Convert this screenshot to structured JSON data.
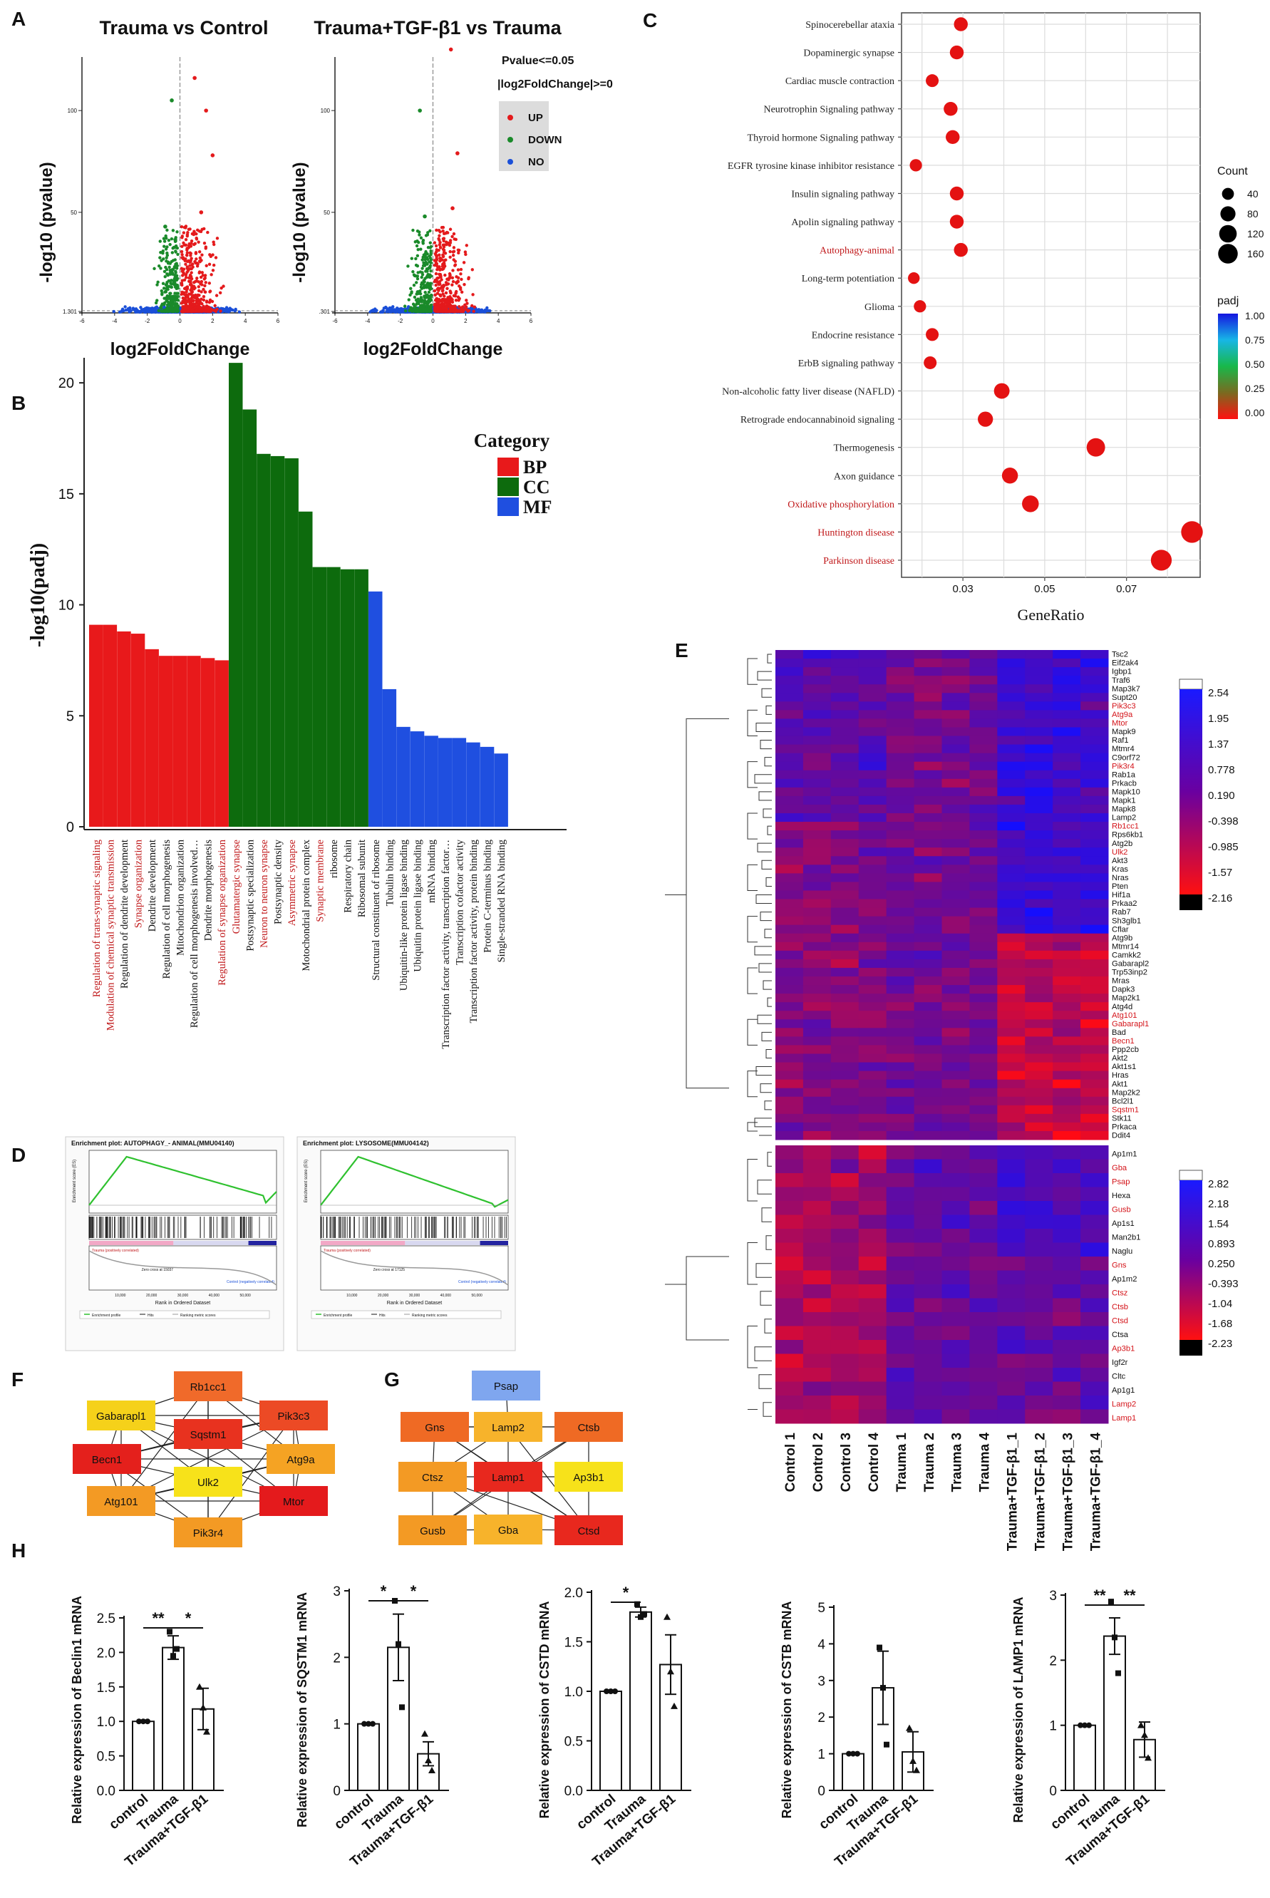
{
  "chart_data": [
    {
      "panel": "A",
      "type": "scatter",
      "subtype": "volcano",
      "plots": [
        {
          "title": "Trauma vs Control",
          "xlabel": "log2FoldChange",
          "ylabel": "-log10 (pvalue)",
          "yticks": [
            "1.301",
            "50",
            "100"
          ],
          "xticks": [
            "-6",
            "-4",
            "-2",
            "0",
            "2",
            "4",
            "6"
          ]
        },
        {
          "title": "Trauma+TGF-β1 vs Trauma",
          "xlabel": "log2FoldChange",
          "ylabel": "-log10 (pvalue)",
          "yticks": [
            ".301",
            "50",
            "100"
          ],
          "xticks": [
            "-6",
            "-4",
            "-2",
            "0",
            "2",
            "4",
            "6"
          ]
        }
      ],
      "thresholds": [
        "Pvalue<=0.05",
        "|log2FoldChange|>=0"
      ],
      "legend": [
        {
          "label": "UP",
          "color": "#e41a1c"
        },
        {
          "label": "DOWN",
          "color": "#1a8a2a"
        },
        {
          "label": "NO",
          "color": "#1a4fd8"
        }
      ]
    },
    {
      "panel": "B",
      "type": "bar",
      "ylabel": "-log10(padj)",
      "ylim": [
        0,
        21
      ],
      "yticks": [
        0,
        5,
        10,
        15,
        20
      ],
      "legend_title": "Category",
      "categories_legend": [
        {
          "label": "BP",
          "color": "#e8191b"
        },
        {
          "label": "CC",
          "color": "#0d6b0d"
        },
        {
          "label": "MF",
          "color": "#1f4fe0"
        }
      ],
      "bars": [
        {
          "label": "Regulation of trans-synaptic signaling",
          "value": 9.1,
          "cat": "BP",
          "highlight": true
        },
        {
          "label": "Modulation of chemical synaptic transmission",
          "value": 9.1,
          "cat": "BP",
          "highlight": true
        },
        {
          "label": "Regulation of dendrite development",
          "value": 8.8,
          "cat": "BP",
          "highlight": false
        },
        {
          "label": "Synapse organization",
          "value": 8.7,
          "cat": "BP",
          "highlight": true
        },
        {
          "label": "Dendrite development",
          "value": 8.0,
          "cat": "BP",
          "highlight": false
        },
        {
          "label": "Regulation of cell morphogenesis",
          "value": 7.7,
          "cat": "BP",
          "highlight": false
        },
        {
          "label": "Mitochondrion organization",
          "value": 7.7,
          "cat": "BP",
          "highlight": false
        },
        {
          "label": "Regulation of cell morphogenesis involved…",
          "value": 7.7,
          "cat": "BP",
          "highlight": false
        },
        {
          "label": "Dendrite morphogenesis",
          "value": 7.6,
          "cat": "BP",
          "highlight": false
        },
        {
          "label": "Regulation of synapse organization",
          "value": 7.5,
          "cat": "BP",
          "highlight": true
        },
        {
          "label": "Glutamatergic synapse",
          "value": 20.9,
          "cat": "CC",
          "highlight": true
        },
        {
          "label": "Postsynaptic specialization",
          "value": 18.8,
          "cat": "CC",
          "highlight": false
        },
        {
          "label": "Neuron to neuron synapse",
          "value": 16.8,
          "cat": "CC",
          "highlight": true
        },
        {
          "label": "Postsynaptic density",
          "value": 16.7,
          "cat": "CC",
          "highlight": false
        },
        {
          "label": "Asymmetric synapse",
          "value": 16.6,
          "cat": "CC",
          "highlight": true
        },
        {
          "label": "Motochondrial protein complex",
          "value": 14.2,
          "cat": "CC",
          "highlight": false
        },
        {
          "label": "Synaptic membrane",
          "value": 11.7,
          "cat": "CC",
          "highlight": true
        },
        {
          "label": "ribosome",
          "value": 11.7,
          "cat": "CC",
          "highlight": false
        },
        {
          "label": "Respiratory chain",
          "value": 11.6,
          "cat": "CC",
          "highlight": false
        },
        {
          "label": "Ribosomal subunit",
          "value": 11.6,
          "cat": "CC",
          "highlight": false
        },
        {
          "label": "Structural constituent of ribosome",
          "value": 10.6,
          "cat": "MF",
          "highlight": false
        },
        {
          "label": "Tubulin binding",
          "value": 6.2,
          "cat": "MF",
          "highlight": false
        },
        {
          "label": "Ubiquitin-like protein ligase binding",
          "value": 4.5,
          "cat": "MF",
          "highlight": false
        },
        {
          "label": "Ubiquitin protein ligase binding",
          "value": 4.3,
          "cat": "MF",
          "highlight": false
        },
        {
          "label": "mRNA binding",
          "value": 4.1,
          "cat": "MF",
          "highlight": false
        },
        {
          "label": "Transcription factor activity, transcription factor…",
          "value": 4.0,
          "cat": "MF",
          "highlight": false
        },
        {
          "label": "Transcription cofactor activity",
          "value": 4.0,
          "cat": "MF",
          "highlight": false
        },
        {
          "label": "Transcription factor activity, protein binding",
          "value": 3.8,
          "cat": "MF",
          "highlight": false
        },
        {
          "label": "Protein C-terminus binding",
          "value": 3.6,
          "cat": "MF",
          "highlight": false
        },
        {
          "label": "Single-stranded RNA binding",
          "value": 3.3,
          "cat": "MF",
          "highlight": false
        }
      ]
    },
    {
      "panel": "C",
      "type": "scatter",
      "subtype": "dot",
      "xlabel": "GeneRatio",
      "xlim": [
        0.015,
        0.088
      ],
      "xticks": [
        0.03,
        0.05,
        0.07
      ],
      "size_legend_title": "Count",
      "size_legend": [
        40,
        80,
        120,
        160
      ],
      "color_legend_title": "padj",
      "color_ticks": [
        "1.00",
        "0.75",
        "0.50",
        "0.25",
        "0.00"
      ],
      "terms": [
        {
          "label": "Spinocerebellar ataxia",
          "x": 0.0295,
          "count": 50,
          "highlight": false
        },
        {
          "label": "Dopaminergic synapse",
          "x": 0.0285,
          "count": 50,
          "highlight": false
        },
        {
          "label": "Cardiac muscle contraction",
          "x": 0.0225,
          "count": 40,
          "highlight": false
        },
        {
          "label": "Neurotrophin Signaling pathway",
          "x": 0.027,
          "count": 50,
          "highlight": false
        },
        {
          "label": "Thyroid hormone Signaling pathway",
          "x": 0.0275,
          "count": 50,
          "highlight": false
        },
        {
          "label": "EGFR tyrosine kinase inhibitor resistance",
          "x": 0.0185,
          "count": 35,
          "highlight": false
        },
        {
          "label": "Insulin signaling pathway",
          "x": 0.0285,
          "count": 50,
          "highlight": false
        },
        {
          "label": "Apolin signaling pathway",
          "x": 0.0285,
          "count": 50,
          "highlight": false
        },
        {
          "label": "Autophagy-animal",
          "x": 0.0295,
          "count": 50,
          "highlight": true
        },
        {
          "label": "Long-term potentiation",
          "x": 0.018,
          "count": 30,
          "highlight": false
        },
        {
          "label": "Glioma",
          "x": 0.0195,
          "count": 35,
          "highlight": false
        },
        {
          "label": "Endocrine resistance",
          "x": 0.0225,
          "count": 40,
          "highlight": false
        },
        {
          "label": "ErbB signaling pathway",
          "x": 0.022,
          "count": 40,
          "highlight": false
        },
        {
          "label": "Non-alcoholic fatty liver disease (NAFLD)",
          "x": 0.0395,
          "count": 70,
          "highlight": false
        },
        {
          "label": "Retrograde endocannabinoid signaling",
          "x": 0.0355,
          "count": 65,
          "highlight": false
        },
        {
          "label": "Thermogenesis",
          "x": 0.0625,
          "count": 110,
          "highlight": false
        },
        {
          "label": "Axon guidance",
          "x": 0.0415,
          "count": 75,
          "highlight": false
        },
        {
          "label": "Oxidative phosphorylation",
          "x": 0.0465,
          "count": 85,
          "highlight": true
        },
        {
          "label": "Huntington disease",
          "x": 0.086,
          "count": 165,
          "highlight": true
        },
        {
          "label": "Parkinson disease",
          "x": 0.0785,
          "count": 150,
          "highlight": true
        }
      ]
    },
    {
      "panel": "D",
      "type": "line",
      "subtype": "gsea",
      "plots": [
        {
          "title": "Enrichment plot: AUTOPHAGY_- ANIMAL(MMU04140)",
          "xlabel": "Rank in Ordered Dataset",
          "ylabel": "Enrichment score (ES)",
          "low_label": "Trauma (positively correlated)",
          "high_label": "Control (negatively correlated)",
          "zero_cross": "Zero cross at 15037",
          "xticks": [
            "10,000",
            "20,000",
            "30,000",
            "40,000",
            "50,000"
          ]
        },
        {
          "title": "Enrichment plot: LYSOSOME(MMU04142)",
          "xlabel": "Rank in Ordered Dataset",
          "ylabel": "Enrichment score (ES)",
          "low_label": "Trauma (positively correlated)",
          "high_label": "Control (negatively correlated)",
          "zero_cross": "Zero cross at 17125",
          "xticks": [
            "10,000",
            "20,000",
            "30,000",
            "40,000",
            "50,000"
          ]
        }
      ],
      "legend": [
        "Enrichment profile",
        "Hits",
        "Ranking metric scores"
      ]
    },
    {
      "panel": "E",
      "type": "heatmap",
      "columns": [
        "Control 1",
        "Control 2",
        "Control 3",
        "Control 4",
        "Trauma 1",
        "Trauma 2",
        "Trauma 3",
        "Trauma 4",
        "Trauma+TGF-β1_1",
        "Trauma+TGF-β1_2",
        "Trauma+TGF-β1_3",
        "Trauma+TGF-β1_4"
      ],
      "top_rows": [
        "Tsc2",
        "Eif2ak4",
        "Igbp1",
        "Traf6",
        "Map3k7",
        "Supt20",
        "Pik3c3",
        "Atg9a",
        "Mtor",
        "Mapk9",
        "Raf1",
        "Mtmr4",
        "C9orf72",
        "Pik3r4",
        "Rab1a",
        "Prkacb",
        "Mapk10",
        "Mapk1",
        "Mapk8",
        "Lamp2",
        "Rb1cc1",
        "Rps6kb1",
        "Atg2b",
        "Ulk2",
        "Akt3",
        "Kras",
        "Nras",
        "Pten",
        "Hif1a",
        "Prkaa2",
        "Rab7",
        "Sh3glb1",
        "Cflar",
        "Atg9b",
        "Mtmr14",
        "Camkk2",
        "Gabarapl2",
        "Trp53inp2",
        "Mras",
        "Dapk3",
        "Map2k1",
        "Atg4d",
        "Atg101",
        "Gabarapl1",
        "Bad",
        "Becn1",
        "Ppp2cb",
        "Akt2",
        "Akt1s1",
        "Hras",
        "Akt1",
        "Map2k2",
        "Bcl2l1",
        "Sqstm1",
        "Stk11",
        "Prkaca",
        "Ddit4"
      ],
      "top_red": [
        "Pik3c3",
        "Atg9a",
        "Mtor",
        "Pik3r4",
        "Rb1cc1",
        "Ulk2",
        "Atg101",
        "Gabarapl1",
        "Becn1",
        "Sqstm1"
      ],
      "top_scale": [
        "2.54",
        "1.95",
        "1.37",
        "0.778",
        "0.190",
        "-0.398",
        "-0.985",
        "-1.57",
        "-2.16"
      ],
      "bottom_rows": [
        "Ap1m1",
        "Gba",
        "Psap",
        "Hexa",
        "Gusb",
        "Ap1s1",
        "Man2b1",
        "Naglu",
        "Gns",
        "Ap1m2",
        "Ctsz",
        "Ctsb",
        "Ctsd",
        "Ctsa",
        "Ap3b1",
        "Igf2r",
        "Cltc",
        "Ap1g1",
        "Lamp2",
        "Lamp1"
      ],
      "bottom_red": [
        "Gba",
        "Psap",
        "Gusb",
        "Gns",
        "Ctsz",
        "Ctsb",
        "Ctsd",
        "Ap3b1",
        "Lamp2",
        "Lamp1"
      ],
      "bottom_scale": [
        "2.82",
        "2.18",
        "1.54",
        "0.893",
        "0.250",
        "-0.393",
        "-1.04",
        "-1.68",
        "-2.23"
      ]
    },
    {
      "panel": "F",
      "type": "network",
      "nodes": [
        {
          "label": "Rb1cc1",
          "color": "#f06a2a"
        },
        {
          "label": "Gabarapl1",
          "color": "#f5d11a"
        },
        {
          "label": "Pik3c3",
          "color": "#ec4a25"
        },
        {
          "label": "Sqstm1",
          "color": "#e8321f"
        },
        {
          "label": "Becn1",
          "color": "#e4201c"
        },
        {
          "label": "Atg9a",
          "color": "#f5a323"
        },
        {
          "label": "Ulk2",
          "color": "#f7e21a"
        },
        {
          "label": "Atg101",
          "color": "#f39a24"
        },
        {
          "label": "Mtor",
          "color": "#e41a1c"
        },
        {
          "label": "Pik3r4",
          "color": "#f39a24"
        }
      ]
    },
    {
      "panel": "G",
      "type": "network",
      "nodes": [
        {
          "label": "Psap",
          "color": "#7fa6ef"
        },
        {
          "label": "Gns",
          "color": "#ef6a24"
        },
        {
          "label": "Lamp2",
          "color": "#f7b32b"
        },
        {
          "label": "Ctsb",
          "color": "#ef6a24"
        },
        {
          "label": "Ctsz",
          "color": "#f39a24"
        },
        {
          "label": "Lamp1",
          "color": "#e8281e"
        },
        {
          "label": "Ap3b1",
          "color": "#f7e21a"
        },
        {
          "label": "Gusb",
          "color": "#f39a24"
        },
        {
          "label": "Gba",
          "color": "#f7b32b"
        },
        {
          "label": "Ctsd",
          "color": "#e8281e"
        }
      ]
    },
    {
      "panel": "H",
      "type": "bar",
      "categories": [
        "control",
        "Trauma",
        "Trauma+TGF-β1"
      ],
      "plots": [
        {
          "ylabel": "Relative expression of Beclin1 mRNA",
          "ylim": [
            0,
            2.5
          ],
          "yticks": [
            "0.0",
            "0.5",
            "1.0",
            "1.5",
            "2.0",
            "2.5"
          ],
          "values": [
            1.0,
            2.07,
            1.18
          ],
          "errors": [
            0.0,
            0.17,
            0.3
          ],
          "points": [
            [
              1,
              1,
              1
            ],
            [
              2.3,
              1.95,
              2.05
            ],
            [
              1.5,
              1.2,
              0.85
            ]
          ],
          "sig": [
            "**",
            "*"
          ]
        },
        {
          "ylabel": "Relative expression of SQSTM1 mRNA",
          "ylim": [
            0,
            3
          ],
          "yticks": [
            "0",
            "1",
            "2",
            "3"
          ],
          "values": [
            1.0,
            2.15,
            0.55
          ],
          "errors": [
            0.0,
            0.5,
            0.18
          ],
          "points": [
            [
              1,
              1,
              1
            ],
            [
              2.85,
              2.2,
              1.25
            ],
            [
              0.85,
              0.45,
              0.3
            ]
          ],
          "sig": [
            "*",
            "*"
          ]
        },
        {
          "ylabel": "Relative expression of CSTD mRNA",
          "ylim": [
            0,
            2.0
          ],
          "yticks": [
            "0.0",
            "0.5",
            "1.0",
            "1.5",
            "2.0"
          ],
          "values": [
            1.0,
            1.8,
            1.27
          ],
          "errors": [
            0.0,
            0.05,
            0.3
          ],
          "points": [
            [
              1,
              1,
              1
            ],
            [
              1.88,
              1.75,
              1.78
            ],
            [
              1.75,
              1.2,
              0.85
            ]
          ],
          "sig": [
            "*"
          ]
        },
        {
          "ylabel": "Relative expression of CSTB mRNA",
          "ylim": [
            0,
            5
          ],
          "yticks": [
            "0",
            "1",
            "2",
            "3",
            "4",
            "5"
          ],
          "values": [
            1.0,
            2.8,
            1.05
          ],
          "errors": [
            0.0,
            1.0,
            0.55
          ],
          "points": [
            [
              1,
              1,
              1
            ],
            [
              3.9,
              2.8,
              1.25
            ],
            [
              1.7,
              0.8,
              0.55
            ]
          ],
          "sig": []
        },
        {
          "ylabel": "Relative expression of LAMP1 mRNA",
          "ylim": [
            0,
            3
          ],
          "yticks": [
            "0",
            "1",
            "2",
            "3"
          ],
          "values": [
            1.0,
            2.37,
            0.78
          ],
          "errors": [
            0.0,
            0.28,
            0.27
          ],
          "points": [
            [
              1,
              1,
              1
            ],
            [
              2.9,
              2.35,
              1.8
            ],
            [
              1.0,
              0.85,
              0.5
            ]
          ],
          "sig": [
            "**",
            "**"
          ]
        }
      ]
    }
  ],
  "panel_letters": [
    "A",
    "B",
    "C",
    "D",
    "E",
    "F",
    "G",
    "H"
  ]
}
